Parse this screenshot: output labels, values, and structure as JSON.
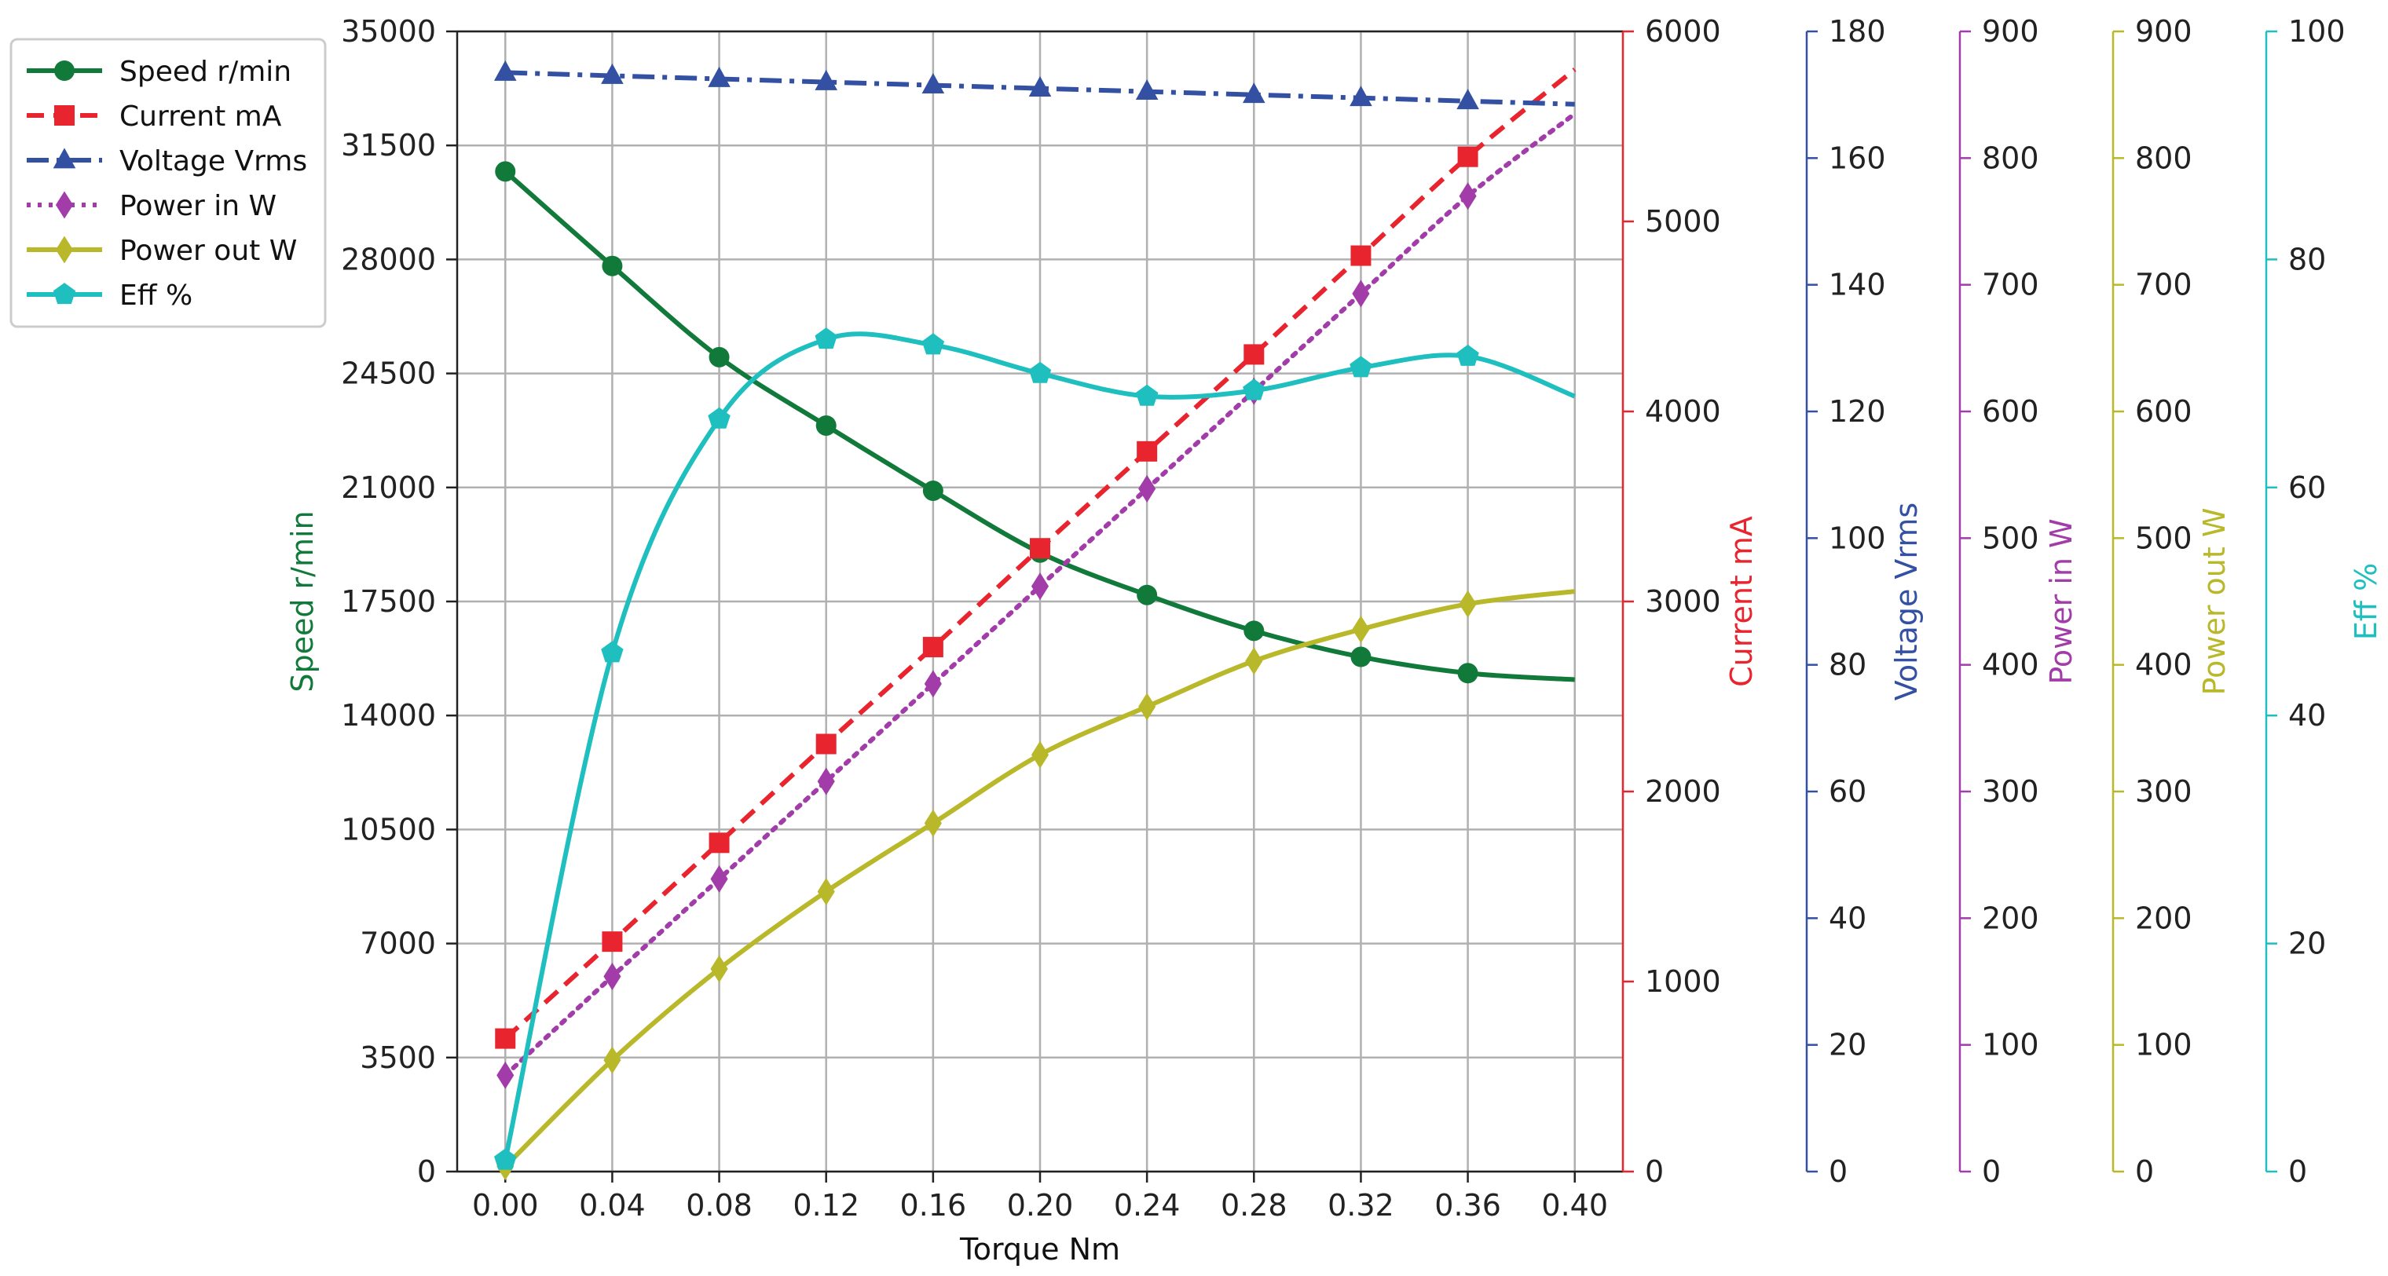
{
  "chart_data": {
    "type": "line",
    "x": [
      0.0,
      0.04,
      0.08,
      0.12,
      0.16,
      0.2,
      0.24,
      0.28,
      0.32,
      0.36,
      0.4
    ],
    "xlabel": "Torque  Nm",
    "x_ticks": [
      "0.00",
      "0.04",
      "0.08",
      "0.12",
      "0.16",
      "0.20",
      "0.24",
      "0.28",
      "0.32",
      "0.36",
      "0.40"
    ],
    "xlim": [
      -0.018,
      0.418
    ],
    "grid": true,
    "legend_position": "top-left, outside the plot area",
    "axes": [
      {
        "key": "speed",
        "label": "Speed r/min",
        "color": "#117a3a",
        "side": "left",
        "ylim": [
          0,
          35000
        ],
        "ticks": [
          "0",
          "3500",
          "7000",
          "10500",
          "14000",
          "17500",
          "21000",
          "24500",
          "28000",
          "31500",
          "35000"
        ]
      },
      {
        "key": "current",
        "label": "Current mA",
        "color": "#e8242f",
        "side": "right",
        "ylim": [
          0,
          6000
        ],
        "ticks": [
          "0",
          "1000",
          "2000",
          "3000",
          "4000",
          "5000",
          "6000"
        ]
      },
      {
        "key": "voltage",
        "label": "Voltage Vrms",
        "color": "#3350a3",
        "side": "right",
        "ylim": [
          0,
          180
        ],
        "ticks": [
          "0",
          "20",
          "40",
          "60",
          "80",
          "100",
          "120",
          "140",
          "160",
          "180"
        ]
      },
      {
        "key": "power_in",
        "label": "Power in W",
        "color": "#a13ca8",
        "side": "right",
        "ylim": [
          0,
          900
        ],
        "ticks": [
          "0",
          "100",
          "200",
          "300",
          "400",
          "500",
          "600",
          "700",
          "800",
          "900"
        ]
      },
      {
        "key": "power_out",
        "label": "Power out W",
        "color": "#b8b82a",
        "side": "right",
        "ylim": [
          0,
          900
        ],
        "ticks": [
          "0",
          "100",
          "200",
          "300",
          "400",
          "500",
          "600",
          "700",
          "800",
          "900"
        ]
      },
      {
        "key": "eff",
        "label": "Eff %",
        "color": "#1fbfbf",
        "side": "right",
        "ylim": [
          0,
          100
        ],
        "ticks": [
          "0",
          "20",
          "40",
          "60",
          "80",
          "100"
        ]
      }
    ],
    "series": [
      {
        "name": "Speed r/min",
        "axis": "speed",
        "color": "#117a3a",
        "marker": "circle",
        "dash": "solid",
        "values": [
          30700,
          27800,
          25000,
          22900,
          20900,
          19000,
          17700,
          16600,
          15800,
          15300,
          15100
        ],
        "marker_count": 10
      },
      {
        "name": "Current mA",
        "axis": "current",
        "color": "#e8242f",
        "marker": "square",
        "dash": "dashed",
        "values": [
          700,
          1210,
          1730,
          2250,
          2760,
          3280,
          3790,
          4300,
          4820,
          5340,
          5800
        ],
        "marker_count": 10
      },
      {
        "name": "Voltage Vrms",
        "axis": "voltage",
        "color": "#3350a3",
        "marker": "triangle",
        "dash": "dashdot",
        "values": [
          173.5,
          173.0,
          172.5,
          172.0,
          171.5,
          171.0,
          170.5,
          170.0,
          169.5,
          169.0,
          168.5
        ],
        "marker_count": 10
      },
      {
        "name": "Power in W",
        "axis": "power_in",
        "color": "#a13ca8",
        "marker": "diamond",
        "dash": "dotted",
        "values": [
          76,
          154,
          231,
          308,
          385,
          462,
          539,
          616,
          693,
          770,
          835
        ],
        "marker_count": 10
      },
      {
        "name": "Power out W",
        "axis": "power_out",
        "color": "#b8b82a",
        "marker": "diamond",
        "dash": "solid",
        "values": [
          4,
          88,
          160,
          221,
          275,
          329,
          367,
          403,
          428,
          448,
          458
        ],
        "marker_count": 10
      },
      {
        "name": "Eff %",
        "axis": "eff",
        "color": "#1fbfbf",
        "marker": "pentagon",
        "dash": "solid",
        "values": [
          1,
          45.5,
          66,
          73,
          72.5,
          70,
          68,
          68.5,
          70.5,
          71.5,
          68
        ],
        "marker_count": 10
      }
    ]
  }
}
